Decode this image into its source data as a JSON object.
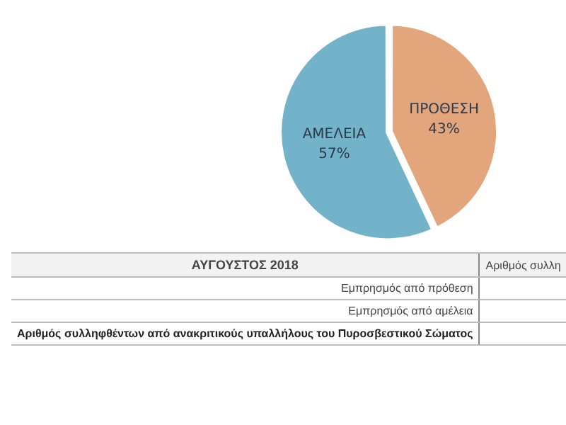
{
  "chart_data": {
    "type": "pie",
    "categories": [
      "ΠΡΟΘΕΣΗ",
      "ΑΜΕΛΕΙΑ"
    ],
    "values": [
      43,
      57
    ],
    "colors": [
      "#e2a57c",
      "#72b3c9"
    ],
    "value_labels": [
      "43%",
      "57%"
    ],
    "legend": false,
    "annotations": [
      "ΑΥΓΟΥΣΤΟΣ 2018",
      "Αριθμός συλλη",
      "Εμπρησμός από πρόθεση",
      "Εμπρησμός από αμέλεια",
      "Αριθμός συλληφθέντων από ανακριτικούς υπαλλήλους του Πυροσβεστικού Σώματος"
    ]
  }
}
